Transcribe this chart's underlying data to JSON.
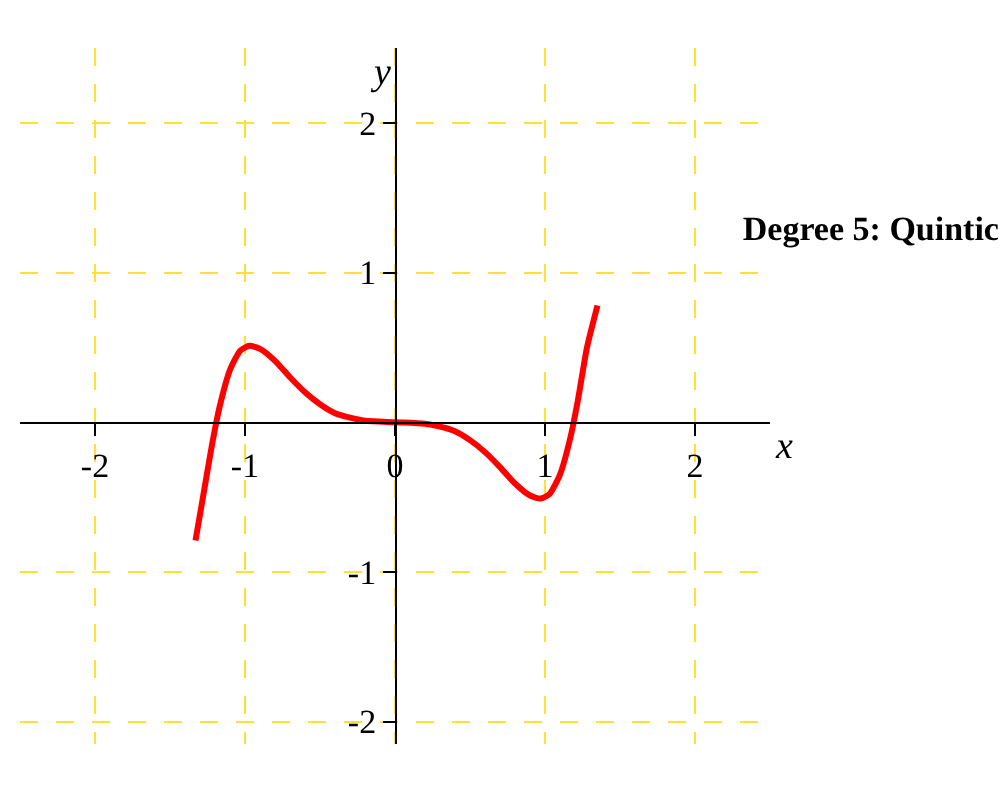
{
  "chart_data": {
    "type": "line",
    "title": "Degree 5: Quintic",
    "xlabel": "x",
    "ylabel": "y",
    "x": [
      -1.33,
      -1.28,
      -1.22,
      -1.17,
      -1.1,
      -1.03,
      -0.97,
      -0.9,
      -0.8,
      -0.7,
      -0.6,
      -0.5,
      -0.4,
      -0.3,
      -0.2,
      0,
      0.2,
      0.3,
      0.4,
      0.5,
      0.6,
      0.7,
      0.8,
      0.9,
      0.97,
      1.03,
      1.1,
      1.17,
      1.22,
      1.28,
      1.35
    ],
    "series": [
      {
        "color": "#ff0000",
        "values": [
          -0.79,
          -0.5,
          -0.15,
          0.1,
          0.35,
          0.48,
          0.51,
          0.49,
          0.41,
          0.3,
          0.2,
          0.12,
          0.06,
          0.03,
          0.01,
          0,
          -0.01,
          -0.03,
          -0.06,
          -0.12,
          -0.2,
          -0.3,
          -0.41,
          -0.49,
          -0.51,
          -0.48,
          -0.35,
          -0.1,
          0.15,
          0.5,
          0.78
        ]
      }
    ],
    "xlim": [
      -2.5,
      2.5
    ],
    "ylim": [
      -2.15,
      2.5
    ],
    "xticks": [
      -2,
      -1,
      0,
      1,
      2
    ],
    "yticks": [
      -2,
      -1,
      1,
      2
    ],
    "grid": true,
    "legend": false,
    "marker": "none",
    "line_style": "solid"
  }
}
